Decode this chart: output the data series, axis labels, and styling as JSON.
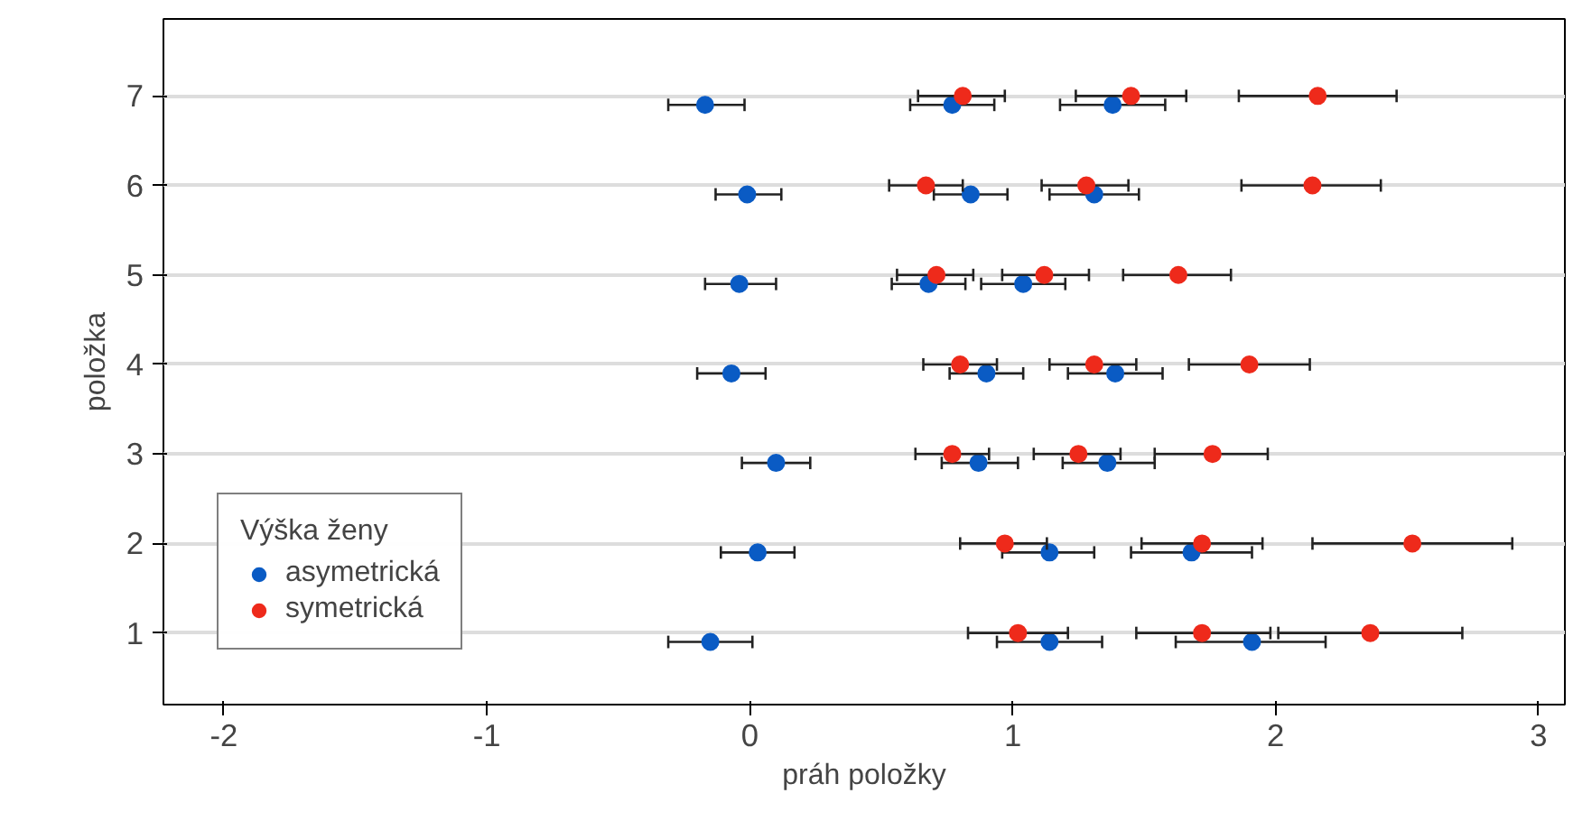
{
  "chart_data": {
    "type": "scatter",
    "xlabel": "práh položky",
    "ylabel": "položka",
    "legend_title": "Výška ženy",
    "legend": "bottom left",
    "marker": "circle",
    "grid": "y",
    "xlim": [
      -2.23,
      3.1
    ],
    "xticks": [
      -2,
      -1,
      0,
      1,
      2,
      3
    ],
    "ylim": [
      0.2,
      7.86
    ],
    "yticks": [
      1,
      2,
      3,
      4,
      5,
      6,
      7
    ],
    "series": [
      {
        "name": "asymetrická",
        "color": "#0a5bc4",
        "x": [
          -0.15,
          1.14,
          1.91,
          0.03,
          1.14,
          1.68,
          0.1,
          0.87,
          1.36,
          -0.07,
          0.9,
          1.39,
          -0.04,
          0.68,
          1.04,
          -0.01,
          0.84,
          1.31,
          -0.17,
          0.77,
          1.38
        ],
        "values": [
          0.9,
          0.9,
          0.9,
          1.9,
          1.9,
          1.9,
          2.9,
          2.9,
          2.9,
          3.9,
          3.9,
          3.9,
          4.9,
          4.9,
          4.9,
          5.9,
          5.9,
          5.9,
          6.9,
          6.9,
          6.9
        ],
        "xerrors": [
          [
            -0.31,
            0.01
          ],
          [
            0.94,
            1.34
          ],
          [
            1.62,
            2.19
          ],
          [
            -0.11,
            0.17
          ],
          [
            0.96,
            1.31
          ],
          [
            1.45,
            1.91
          ],
          [
            -0.03,
            0.23
          ],
          [
            0.73,
            1.02
          ],
          [
            1.19,
            1.54
          ],
          [
            -0.2,
            0.06
          ],
          [
            0.76,
            1.04
          ],
          [
            1.21,
            1.57
          ],
          [
            -0.17,
            0.1
          ],
          [
            0.54,
            0.82
          ],
          [
            0.88,
            1.2
          ],
          [
            -0.13,
            0.12
          ],
          [
            0.7,
            0.98
          ],
          [
            1.14,
            1.48
          ],
          [
            -0.31,
            -0.02
          ],
          [
            0.61,
            0.93
          ],
          [
            1.18,
            1.58
          ]
        ]
      },
      {
        "name": "symetrická",
        "color": "#ee2a1b",
        "x": [
          1.02,
          1.72,
          2.36,
          0.97,
          1.72,
          2.52,
          0.77,
          1.25,
          1.76,
          0.8,
          1.31,
          1.9,
          0.71,
          1.12,
          1.63,
          0.67,
          1.28,
          2.14,
          0.81,
          1.45,
          2.16
        ],
        "values": [
          1,
          1,
          1,
          2,
          2,
          2,
          3,
          3,
          3,
          4,
          4,
          4,
          5,
          5,
          5,
          6,
          6,
          6,
          7,
          7,
          7
        ],
        "xerrors": [
          [
            0.83,
            1.21
          ],
          [
            1.47,
            1.98
          ],
          [
            2.01,
            2.71
          ],
          [
            0.8,
            1.13
          ],
          [
            1.49,
            1.95
          ],
          [
            2.14,
            2.9
          ],
          [
            0.63,
            0.91
          ],
          [
            1.08,
            1.41
          ],
          [
            1.54,
            1.97
          ],
          [
            0.66,
            0.94
          ],
          [
            1.14,
            1.47
          ],
          [
            1.67,
            2.13
          ],
          [
            0.56,
            0.85
          ],
          [
            0.96,
            1.29
          ],
          [
            1.42,
            1.83
          ],
          [
            0.53,
            0.81
          ],
          [
            1.11,
            1.44
          ],
          [
            1.87,
            2.4
          ],
          [
            0.64,
            0.97
          ],
          [
            1.24,
            1.66
          ],
          [
            1.86,
            2.46
          ]
        ]
      }
    ]
  }
}
